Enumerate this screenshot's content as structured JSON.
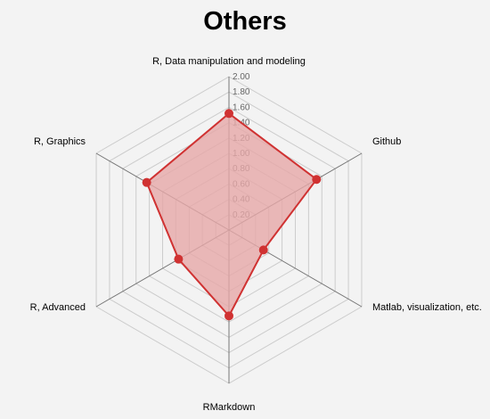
{
  "chart_data": {
    "type": "radar",
    "title": "Others",
    "axes": [
      "R, Data manipulation and modeling",
      "Github",
      "Matlab, visualization, etc.",
      "RMarkdown",
      "R, Advanced",
      "R, Graphics"
    ],
    "series": [
      {
        "values": [
          1.52,
          1.32,
          0.52,
          1.12,
          0.76,
          1.24
        ]
      }
    ],
    "range": [
      0,
      2.0
    ],
    "ticks": [
      "0.20",
      "0.40",
      "0.60",
      "0.80",
      "1.00",
      "1.20",
      "1.40",
      "1.60",
      "1.80",
      "2.00"
    ],
    "grid": true,
    "colors": {
      "line": "#d03232",
      "fill": "#e6a8a8",
      "grid": "#cccccc",
      "axis": "#777777"
    }
  }
}
